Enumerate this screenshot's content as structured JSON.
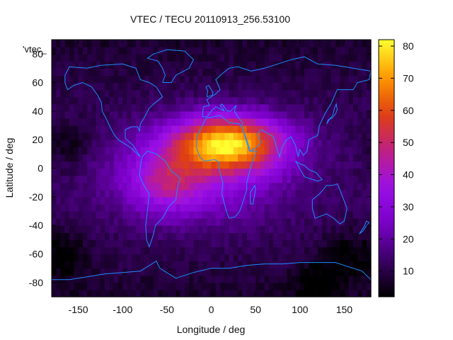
{
  "chart_data": {
    "type": "heatmap",
    "title": "VTEC / TECU 20110913_256.53100",
    "xlabel": "Longitude / deg",
    "ylabel": "Latitude / deg",
    "series_key": "'vtec_",
    "xlim": [
      -180,
      180
    ],
    "ylim": [
      -90,
      90
    ],
    "xticks": [
      -150,
      -100,
      -50,
      0,
      50,
      100,
      150
    ],
    "yticks": [
      -80,
      -60,
      -40,
      -20,
      0,
      20,
      40,
      60,
      80
    ],
    "colorbar": {
      "range": [
        2,
        82
      ],
      "ticks": [
        10,
        20,
        30,
        40,
        50,
        60,
        70,
        80
      ],
      "palette": [
        "#000000",
        "#3b0066",
        "#7a00c8",
        "#9b10e8",
        "#c02080",
        "#e04010",
        "#ff9a00",
        "#ffff30"
      ]
    },
    "tec_features": {
      "background_tecu": 12,
      "equatorial_anomaly": {
        "peak_tecu": 72,
        "center_lon": 20,
        "center_lat": 18,
        "lon_extent": [
          -110,
          90
        ],
        "lat_extent": [
          -35,
          32
        ]
      },
      "secondary_crest": {
        "center_lon": -50,
        "center_lat": -10,
        "peak_tecu": 42
      },
      "low_regions": [
        {
          "lon": -160,
          "lat": 15,
          "tecu": 4
        },
        {
          "lon": -165,
          "lat": -60,
          "tecu": 3
        },
        {
          "lon": 150,
          "lat": -60,
          "tecu": 5
        },
        {
          "lon": 120,
          "lat": -80,
          "tecu": 3
        }
      ]
    },
    "coastlines": "continent outlines (cyan)",
    "coastline_color": "#1e8cff"
  }
}
